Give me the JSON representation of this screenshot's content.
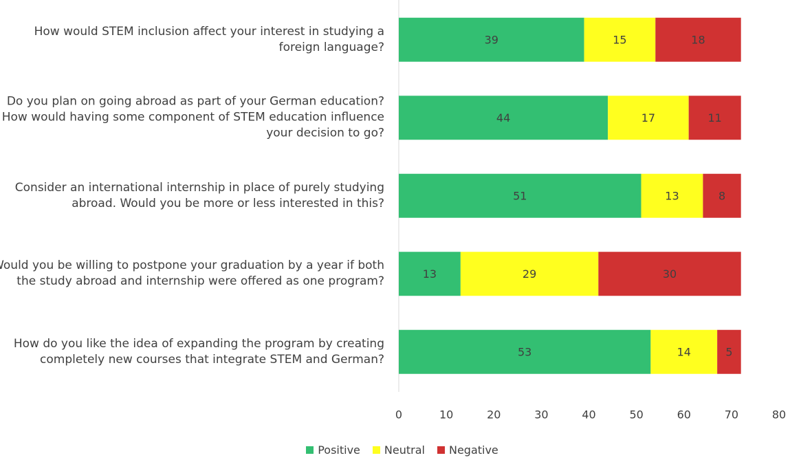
{
  "chart_data": {
    "type": "stacked-bar-horizontal",
    "categories": [
      "How would STEM inclusion affect your interest in studying a foreign language?",
      "Do you plan on going abroad as part of your German education? How would having some component of STEM education influence your decision to go?",
      "Consider an international internship in place of purely studying abroad. Would you be more or less interested in this?",
      "Would you be willing to postpone your graduation by a year if both the study abroad and internship were offered as one program?",
      "How do you like the idea of expanding the program by creating completely new courses that integrate STEM and German?"
    ],
    "series": [
      {
        "name": "Positive",
        "color": "#33bf72",
        "values": [
          39,
          44,
          51,
          13,
          53
        ]
      },
      {
        "name": "Neutral",
        "color": "#ffff1f",
        "values": [
          15,
          17,
          13,
          29,
          14
        ]
      },
      {
        "name": "Negative",
        "color": "#d03232",
        "values": [
          18,
          11,
          8,
          30,
          5
        ]
      }
    ],
    "xlim": [
      0,
      80
    ],
    "xticks": [
      0,
      10,
      20,
      30,
      40,
      50,
      60,
      70,
      80
    ],
    "grid": false,
    "legend": "bottom"
  }
}
